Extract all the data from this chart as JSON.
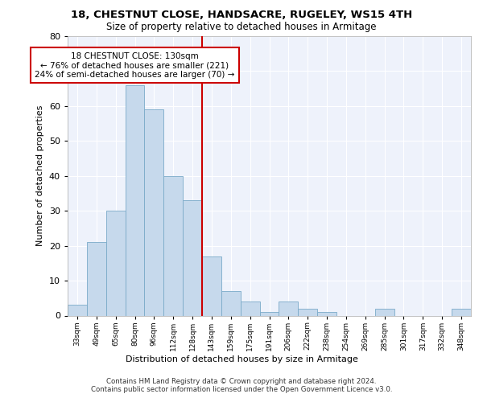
{
  "title": "18, CHESTNUT CLOSE, HANDSACRE, RUGELEY, WS15 4TH",
  "subtitle": "Size of property relative to detached houses in Armitage",
  "xlabel": "Distribution of detached houses by size in Armitage",
  "ylabel": "Number of detached properties",
  "bar_labels": [
    "33sqm",
    "49sqm",
    "65sqm",
    "80sqm",
    "96sqm",
    "112sqm",
    "128sqm",
    "143sqm",
    "159sqm",
    "175sqm",
    "191sqm",
    "206sqm",
    "222sqm",
    "238sqm",
    "254sqm",
    "269sqm",
    "285sqm",
    "301sqm",
    "317sqm",
    "332sqm",
    "348sqm"
  ],
  "bar_heights": [
    3,
    21,
    30,
    66,
    59,
    40,
    33,
    17,
    7,
    4,
    1,
    4,
    2,
    1,
    0,
    0,
    2,
    0,
    0,
    0,
    2
  ],
  "bar_color": "#c6d9ec",
  "bar_edge_color": "#7aaac8",
  "vline_x_index": 6,
  "vline_color": "#cc0000",
  "annotation_text": "18 CHESTNUT CLOSE: 130sqm\n← 76% of detached houses are smaller (221)\n24% of semi-detached houses are larger (70) →",
  "annotation_box_color": "#ffffff",
  "annotation_box_edge": "#cc0000",
  "ylim": [
    0,
    80
  ],
  "yticks": [
    0,
    10,
    20,
    30,
    40,
    50,
    60,
    70,
    80
  ],
  "background_color": "#eef2fb",
  "grid_color": "#ffffff",
  "fig_background": "#ffffff",
  "footer": "Contains HM Land Registry data © Crown copyright and database right 2024.\nContains public sector information licensed under the Open Government Licence v3.0."
}
